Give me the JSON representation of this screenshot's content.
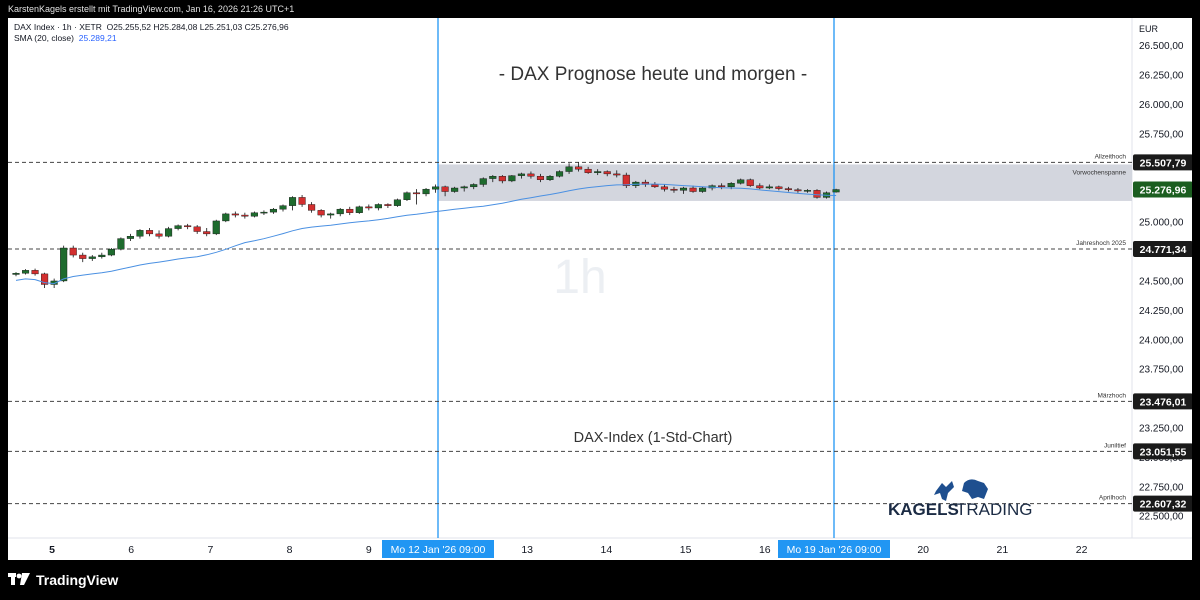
{
  "header": {
    "credit": "KarstenKagels erstellt mit TradingView.com, Jan 16, 2026 21:26 UTC+1"
  },
  "legend": {
    "line1_symbol": "DAX Index · 1h · XETR",
    "line1_ohlc": "O25.255,52  H25.284,08  L25.251,03  C25.276,96",
    "line2_name": "SMA (20, close)",
    "line2_value": "25.289,21"
  },
  "footer": {
    "brand": "TradingView"
  },
  "chart_data": {
    "type": "candlestick",
    "title": "- DAX Prognose heute und morgen -",
    "subtitle": "DAX-Index (1-Std-Chart)",
    "watermark": "1h",
    "currency": "EUR",
    "ylim": [
      22400,
      26650
    ],
    "yticks": [
      "26.500,00",
      "26.250,00",
      "26.000,00",
      "25.750,00",
      "25.500,00",
      "25.250,00",
      "25.000,00",
      "24.750,00",
      "24.500,00",
      "24.250,00",
      "24.000,00",
      "23.750,00",
      "23.500,00",
      "23.250,00",
      "23.000,00",
      "22.750,00",
      "22.500,00"
    ],
    "ytick_values": [
      26500,
      26250,
      26000,
      25750,
      25500,
      25250,
      25000,
      24750,
      24500,
      24250,
      24000,
      23750,
      23500,
      23250,
      23000,
      22750,
      22500
    ],
    "xticks": [
      "5",
      "6",
      "7",
      "8",
      "9",
      "13",
      "14",
      "15",
      "16",
      "20",
      "21",
      "22"
    ],
    "xtick_positions": [
      0,
      1,
      2,
      3,
      4,
      6,
      7,
      8,
      9,
      11,
      12,
      13
    ],
    "x_highlight_labels": [
      {
        "label": "Mo 12 Jan '26   09:00",
        "pos": 5
      },
      {
        "label": "Mo 19 Jan '26   09:00",
        "pos": 10
      }
    ],
    "levels": [
      {
        "name": "Allzeithoch",
        "value": 25507.79,
        "label": "25.507,79",
        "style": "dashed",
        "tag": "#1a1a1a"
      },
      {
        "name": "Jahreshoch 2025",
        "value": 24771.34,
        "label": "24.771,34",
        "style": "dashed",
        "tag": "#1a1a1a"
      },
      {
        "name": "Märzhoch",
        "value": 23476.01,
        "label": "23.476,01",
        "style": "dashed",
        "tag": "#1a1a1a"
      },
      {
        "name": "Juniltief",
        "value": 23051.55,
        "label": "23.051,55",
        "style": "dashed",
        "tag": "#1a1a1a"
      },
      {
        "name": "Aprilhoch",
        "value": 22607.32,
        "label": "22.607,32",
        "style": "dashed",
        "tag": "#1a1a1a"
      }
    ],
    "current_price": {
      "value": 25276.96,
      "label": "25.276,96",
      "color": "#1b5e20"
    },
    "range_box": {
      "name": "Vorwochenspanne",
      "from_pos": 5,
      "to_pos": 10,
      "high": 25490,
      "low": 25180
    },
    "candles_per_day": 16,
    "sma_color": "#4a90e2",
    "up_color": "#1e6b2e",
    "down_color": "#d32f2f",
    "candles": [
      [
        24555,
        24575,
        24540,
        24565
      ],
      [
        24565,
        24600,
        24555,
        24590
      ],
      [
        24590,
        24605,
        24545,
        24560
      ],
      [
        24560,
        24570,
        24440,
        24470
      ],
      [
        24470,
        24520,
        24440,
        24500
      ],
      [
        24500,
        24800,
        24490,
        24780
      ],
      [
        24780,
        24800,
        24700,
        24720
      ],
      [
        24720,
        24740,
        24660,
        24690
      ],
      [
        24690,
        24720,
        24670,
        24705
      ],
      [
        24705,
        24740,
        24690,
        24720
      ],
      [
        24720,
        24780,
        24710,
        24770
      ],
      [
        24770,
        24870,
        24760,
        24860
      ],
      [
        24860,
        24900,
        24840,
        24880
      ],
      [
        24880,
        24940,
        24860,
        24930
      ],
      [
        24930,
        24950,
        24880,
        24900
      ],
      [
        24900,
        24930,
        24860,
        24880
      ],
      [
        24880,
        24960,
        24870,
        24945
      ],
      [
        24945,
        24980,
        24930,
        24970
      ],
      [
        24970,
        24985,
        24940,
        24960
      ],
      [
        24960,
        24975,
        24900,
        24920
      ],
      [
        24920,
        24950,
        24880,
        24900
      ],
      [
        24900,
        25020,
        24890,
        25010
      ],
      [
        25010,
        25080,
        25000,
        25070
      ],
      [
        25070,
        25090,
        25040,
        25060
      ],
      [
        25060,
        25080,
        25030,
        25050
      ],
      [
        25050,
        25090,
        25040,
        25080
      ],
      [
        25080,
        25100,
        25060,
        25085
      ],
      [
        25085,
        25120,
        25070,
        25110
      ],
      [
        25110,
        25150,
        25090,
        25140
      ],
      [
        25140,
        25220,
        25100,
        25210
      ],
      [
        25210,
        25230,
        25130,
        25150
      ],
      [
        25150,
        25170,
        25080,
        25100
      ],
      [
        25100,
        25110,
        25040,
        25060
      ],
      [
        25060,
        25080,
        25030,
        25070
      ],
      [
        25070,
        25120,
        25050,
        25110
      ],
      [
        25110,
        25130,
        25060,
        25080
      ],
      [
        25080,
        25140,
        25070,
        25130
      ],
      [
        25130,
        25150,
        25100,
        25120
      ],
      [
        25120,
        25160,
        25100,
        25150
      ],
      [
        25150,
        25160,
        25120,
        25140
      ],
      [
        25140,
        25200,
        25130,
        25190
      ],
      [
        25190,
        25260,
        25180,
        25250
      ],
      [
        25250,
        25280,
        25150,
        25240
      ],
      [
        25240,
        25290,
        25220,
        25280
      ],
      [
        25280,
        25320,
        25250,
        25300
      ],
      [
        25300,
        25310,
        25220,
        25260
      ],
      [
        25260,
        25300,
        25250,
        25290
      ],
      [
        25290,
        25310,
        25260,
        25300
      ],
      [
        25300,
        25330,
        25280,
        25320
      ],
      [
        25320,
        25380,
        25300,
        25370
      ],
      [
        25370,
        25400,
        25340,
        25390
      ],
      [
        25390,
        25400,
        25330,
        25350
      ],
      [
        25350,
        25400,
        25340,
        25395
      ],
      [
        25395,
        25420,
        25370,
        25410
      ],
      [
        25410,
        25430,
        25370,
        25390
      ],
      [
        25390,
        25410,
        25340,
        25360
      ],
      [
        25360,
        25400,
        25350,
        25390
      ],
      [
        25390,
        25440,
        25380,
        25430
      ],
      [
        25430,
        25500,
        25410,
        25470
      ],
      [
        25470,
        25510,
        25430,
        25450
      ],
      [
        25450,
        25470,
        25410,
        25420
      ],
      [
        25420,
        25450,
        25400,
        25430
      ],
      [
        25430,
        25440,
        25390,
        25410
      ],
      [
        25410,
        25440,
        25380,
        25400
      ],
      [
        25400,
        25420,
        25290,
        25310
      ],
      [
        25310,
        25350,
        25290,
        25340
      ],
      [
        25340,
        25360,
        25300,
        25320
      ],
      [
        25320,
        25340,
        25290,
        25300
      ],
      [
        25300,
        25320,
        25260,
        25280
      ],
      [
        25280,
        25300,
        25250,
        25270
      ],
      [
        25270,
        25300,
        25240,
        25290
      ],
      [
        25290,
        25310,
        25250,
        25260
      ],
      [
        25260,
        25300,
        25250,
        25290
      ],
      [
        25290,
        25320,
        25270,
        25310
      ],
      [
        25310,
        25330,
        25280,
        25300
      ],
      [
        25300,
        25340,
        25280,
        25330
      ],
      [
        25330,
        25370,
        25320,
        25360
      ],
      [
        25360,
        25370,
        25300,
        25310
      ],
      [
        25310,
        25330,
        25280,
        25290
      ],
      [
        25290,
        25320,
        25280,
        25300
      ],
      [
        25300,
        25310,
        25270,
        25285
      ],
      [
        25285,
        25300,
        25260,
        25275
      ],
      [
        25275,
        25290,
        25250,
        25265
      ],
      [
        25265,
        25280,
        25250,
        25270
      ],
      [
        25270,
        25280,
        25200,
        25210
      ],
      [
        25210,
        25260,
        25200,
        25250
      ],
      [
        25255.52,
        25284.08,
        25251.03,
        25276.96
      ]
    ]
  }
}
